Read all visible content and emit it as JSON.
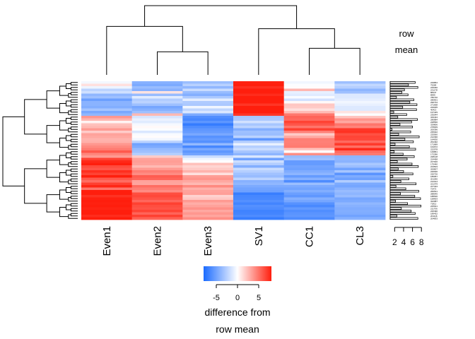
{
  "chart_data": {
    "type": "heatmap",
    "columns": [
      "Even1",
      "Even2",
      "Even3",
      "SV1",
      "CC1",
      "CL3"
    ],
    "row_count": 56,
    "row_labels": [
      "229864",
      "75284",
      "229366",
      "231178",
      "88347",
      "8999",
      "786740",
      "280901",
      "296734",
      "271698",
      "229305",
      "40413",
      "197429",
      "235044",
      "329434",
      "280884",
      "228566",
      "329806",
      "278009",
      "200396",
      "235022",
      "225560",
      "212396",
      "164630",
      "264492",
      "171689",
      "164672",
      "222578",
      "129861",
      "172286",
      "228128",
      "224458",
      "227646",
      "175440",
      "223503",
      "200807",
      "226636",
      "220726",
      "185957",
      "201040",
      "212014",
      "221379",
      "227404",
      "72472",
      "266521",
      "288545",
      "188630",
      "158903",
      "322987",
      "71812",
      "225641",
      "211706",
      "226490",
      "189432",
      "201116",
      "204833"
    ],
    "color_scale": {
      "min": -8,
      "max": 8,
      "low": "#1b6bff",
      "mid": "#ffffff",
      "high": "#ff1e0d",
      "ticks": [
        -5,
        0,
        5
      ],
      "title_line1": "difference from",
      "title_line2": "row mean"
    },
    "row_mean": {
      "title_line1": "row",
      "title_line2": "mean",
      "axis_ticks": [
        2,
        4,
        6,
        8
      ],
      "axis_range": [
        1,
        8.6
      ],
      "values": [
        6.6,
        5.1,
        7.2,
        4.2,
        3.6,
        5.0,
        2.4,
        6.3,
        5.4,
        7.0,
        3.8,
        6.9,
        1.8,
        4.7,
        2.7,
        7.1,
        5.8,
        3.2,
        6.0,
        1.4,
        5.6,
        2.9,
        7.5,
        4.3,
        6.2,
        2.1,
        5.3,
        6.7,
        1.9,
        3.9,
        6.4,
        4.8,
        2.6,
        5.9,
        7.3,
        2.8,
        4.0,
        6.1,
        1.6,
        5.2,
        3.4,
        6.8,
        2.3,
        4.5,
        7.4,
        3.3,
        6.5,
        7.8,
        2.2,
        4.9,
        7.9,
        3.5,
        5.7,
        6.6,
        2.5,
        7.2
      ]
    },
    "column_dendrogram": {
      "nodes": [
        {
          "left": 1,
          "right": 2,
          "height": 2.0
        },
        {
          "left": 0,
          "right": -1,
          "height": 4.2
        },
        {
          "left": 4,
          "right": 5,
          "height": 2.3
        },
        {
          "left": 3,
          "right": -3,
          "height": 4.0
        },
        {
          "left": -2,
          "right": -4,
          "height": 6.0
        }
      ]
    },
    "values": [
      [
        -0.4,
        -4.2,
        -3.5,
        7.9,
        -0.5,
        -3.4
      ],
      [
        1.1,
        -4.6,
        -2.5,
        8.1,
        -0.1,
        -2.1
      ],
      [
        -0.6,
        -3.6,
        -3.9,
        7.4,
        0.1,
        -2.6
      ],
      [
        -2.4,
        -4.2,
        -1.9,
        8.3,
        2.6,
        -4.0
      ],
      [
        -1.7,
        1.0,
        -3.6,
        8.0,
        -0.8,
        -3.4
      ],
      [
        -3.9,
        -3.6,
        -4.3,
        7.5,
        -1.1,
        -1.2
      ],
      [
        -3.4,
        -1.1,
        -2.9,
        8.2,
        -0.2,
        -1.2
      ],
      [
        -5.2,
        -2.7,
        -0.9,
        8.4,
        -1.6,
        -0.9
      ],
      [
        -4.1,
        -2.4,
        -2.8,
        8.1,
        0.2,
        -0.5
      ],
      [
        -4.1,
        -3.4,
        -2.9,
        7.2,
        2.0,
        -0.8
      ],
      [
        -4.4,
        -4.8,
        -0.5,
        8.1,
        1.9,
        -1.2
      ],
      [
        -3.2,
        -4.2,
        -2.2,
        8.5,
        1.1,
        -1.2
      ],
      [
        -4.7,
        -3.4,
        -1.3,
        8.1,
        2.4,
        1.0
      ],
      [
        -3.9,
        2.5,
        -4.6,
        7.1,
        4.8,
        -0.1
      ],
      [
        3.7,
        -1.4,
        -6.1,
        -3.1,
        5.5,
        2.1
      ],
      [
        2.6,
        -0.7,
        -6.5,
        -2.9,
        5.3,
        3.8
      ],
      [
        0.4,
        -1.1,
        -5.7,
        -1.6,
        6.7,
        3.1
      ],
      [
        2.2,
        -0.3,
        -7.1,
        -3.1,
        6.0,
        4.9
      ],
      [
        2.5,
        0.2,
        -6.2,
        -2.4,
        4.9,
        4.4
      ],
      [
        3.6,
        -0.1,
        -5.6,
        -4.3,
        6.8,
        7.1
      ],
      [
        1.8,
        -1.3,
        -5.4,
        -3.4,
        4.5,
        7.3
      ],
      [
        3.3,
        -0.2,
        -4.7,
        -3.5,
        1.9,
        6.2
      ],
      [
        3.1,
        0.1,
        -5.9,
        -2.4,
        3.0,
        6.6
      ],
      [
        2.7,
        -0.5,
        -5.4,
        -5.7,
        4.6,
        6.5
      ],
      [
        2.8,
        -2.3,
        -6.0,
        -2.7,
        4.5,
        5.3
      ],
      [
        3.7,
        -5.0,
        -3.8,
        -0.8,
        4.6,
        7.0
      ],
      [
        4.2,
        -4.6,
        -6.5,
        -2.6,
        4.7,
        5.1
      ],
      [
        4.7,
        -3.7,
        -4.7,
        -1.9,
        2.1,
        7.6
      ],
      [
        5.9,
        -3.4,
        -5.6,
        -3.1,
        0.0,
        5.3
      ],
      [
        4.3,
        -2.6,
        -4.9,
        -4.0,
        4.0,
        4.7
      ],
      [
        3.6,
        1.8,
        -1.9,
        -1.3,
        -3.6,
        -4.0
      ],
      [
        6.7,
        3.3,
        -0.5,
        -5.1,
        -3.3,
        -3.9
      ],
      [
        7.6,
        3.5,
        0.0,
        -1.8,
        -5.4,
        -4.1
      ],
      [
        8.3,
        3.3,
        2.2,
        -2.7,
        -5.4,
        -3.0
      ],
      [
        6.4,
        2.5,
        1.5,
        -4.4,
        -4.9,
        -3.5
      ],
      [
        6.0,
        3.6,
        1.9,
        -1.9,
        -5.1,
        -5.0
      ],
      [
        7.4,
        4.6,
        2.7,
        -2.6,
        -4.5,
        -3.1
      ],
      [
        6.7,
        4.1,
        1.1,
        -3.3,
        -4.0,
        -5.8
      ],
      [
        8.0,
        5.8,
        3.5,
        -3.6,
        -5.4,
        -4.5
      ],
      [
        5.9,
        5.5,
        3.8,
        -2.3,
        -4.2,
        -5.1
      ],
      [
        5.2,
        3.3,
        3.1,
        -4.2,
        -6.2,
        -2.7
      ],
      [
        6.8,
        3.2,
        2.5,
        -3.9,
        -3.5,
        -4.6
      ],
      [
        7.7,
        5.2,
        4.2,
        -4.6,
        -4.6,
        -4.8
      ],
      [
        4.9,
        4.6,
        2.8,
        -5.0,
        -5.0,
        -4.1
      ],
      [
        8.1,
        4.1,
        3.3,
        -5.1,
        -4.4,
        -3.6
      ],
      [
        8.0,
        6.3,
        3.4,
        -7.0,
        -5.2,
        -4.0
      ],
      [
        7.3,
        6.5,
        1.6,
        -6.5,
        -5.6,
        -3.6
      ],
      [
        7.9,
        6.1,
        2.0,
        -6.4,
        -4.3,
        -4.8
      ],
      [
        8.7,
        5.4,
        3.6,
        -6.0,
        -4.8,
        -4.6
      ],
      [
        7.9,
        6.8,
        2.9,
        -6.6,
        -5.9,
        -3.9
      ],
      [
        8.2,
        6.3,
        3.3,
        -6.0,
        -6.4,
        -4.2
      ],
      [
        7.8,
        6.1,
        3.9,
        -6.2,
        -5.5,
        -4.5
      ],
      [
        8.5,
        6.7,
        3.1,
        -6.7,
        -6.1,
        -4.4
      ],
      [
        8.3,
        5.5,
        3.7,
        -6.6,
        -5.8,
        -4.5
      ],
      [
        7.5,
        6.8,
        3.2,
        -6.2,
        -5.6,
        -5.0
      ],
      [
        8.0,
        5.6,
        4.0,
        -7.0,
        -6.2,
        -4.2
      ]
    ]
  }
}
